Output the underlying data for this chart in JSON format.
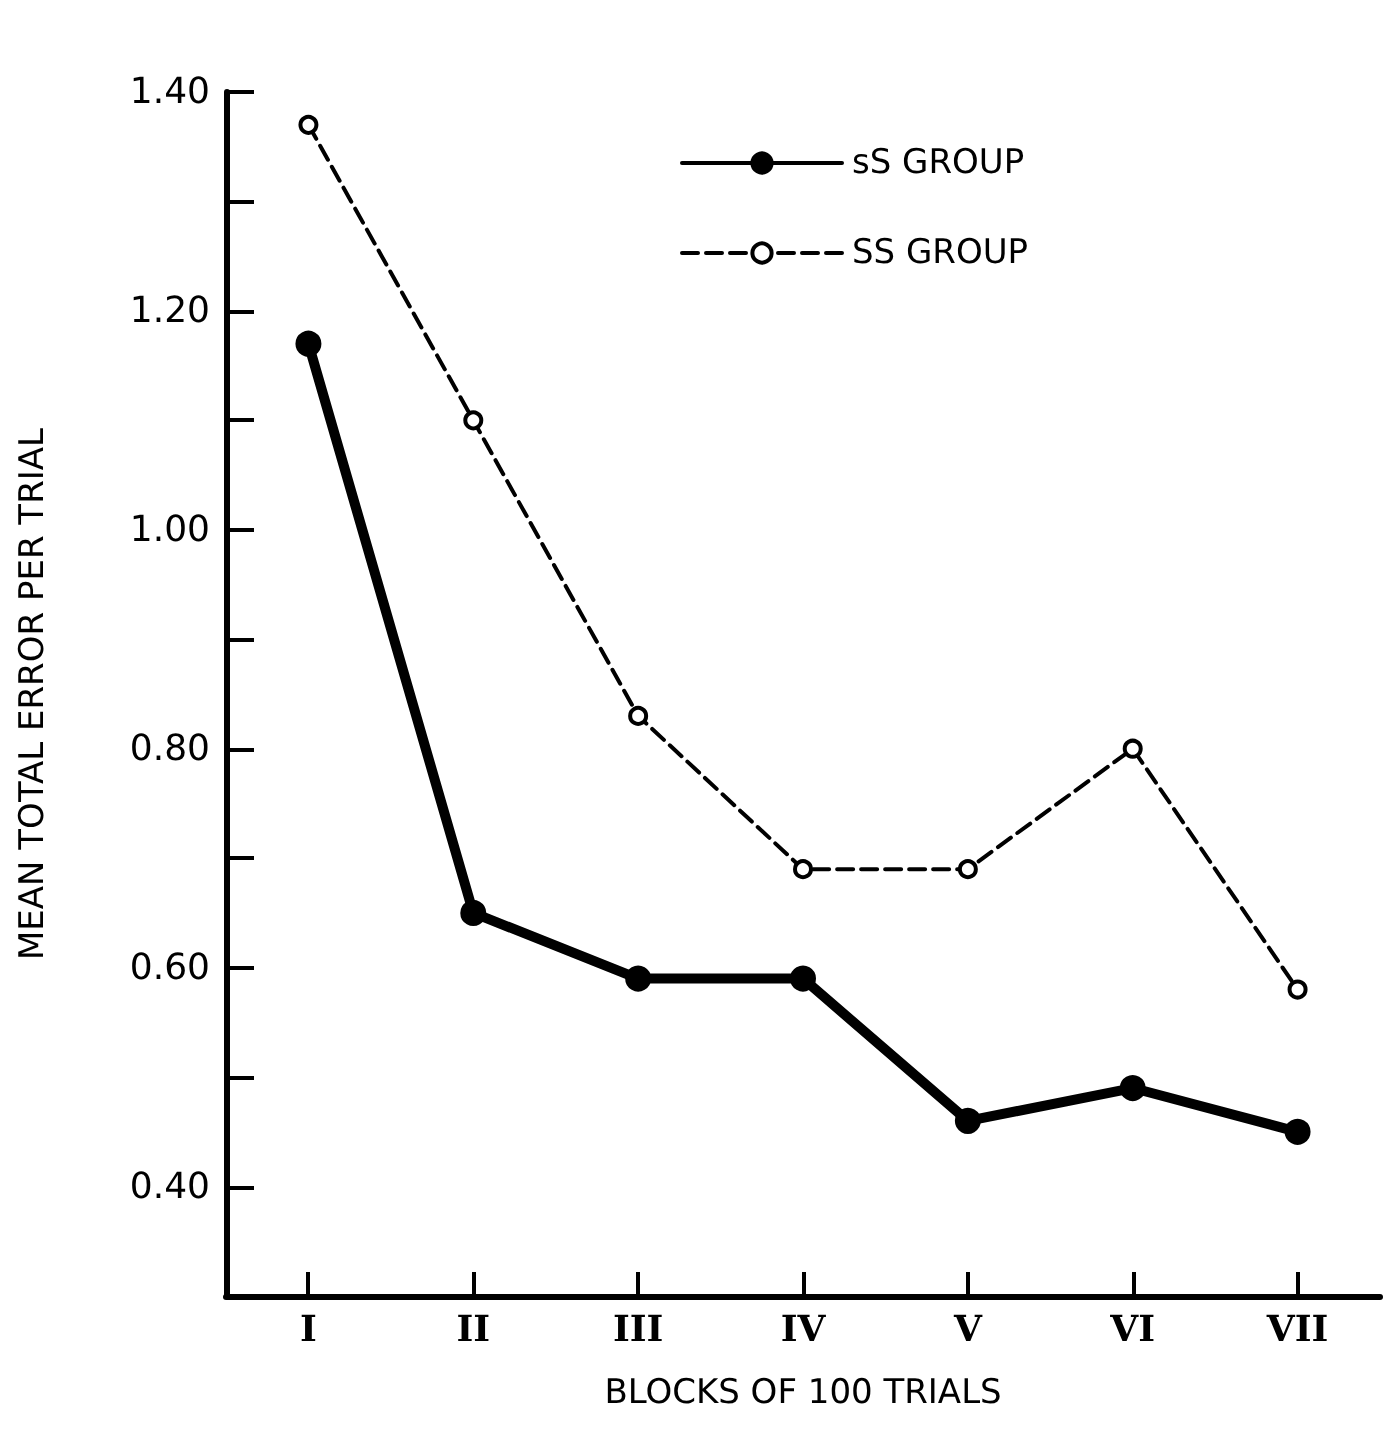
{
  "chart_data": {
    "type": "line",
    "xlabel": "BLOCKS OF 100 TRIALS",
    "ylabel": "MEAN TOTAL ERROR PER TRIAL",
    "categories": [
      "I",
      "II",
      "III",
      "IV",
      "V",
      "VI",
      "VII"
    ],
    "series": [
      {
        "name": "sS GROUP",
        "color": "#000000",
        "line_style": "solid",
        "values": [
          1.17,
          0.65,
          0.59,
          0.59,
          0.46,
          0.49,
          0.45
        ]
      },
      {
        "name": "SS GROUP",
        "color": "#000000",
        "line_style": "dashed",
        "values": [
          1.37,
          1.1,
          0.83,
          0.69,
          0.69,
          0.8,
          0.58
        ]
      }
    ],
    "ylim": [
      0.3,
      1.4
    ],
    "yticks": [
      {
        "value": 0.4,
        "label": "0.40"
      },
      {
        "value": 0.5,
        "label": null
      },
      {
        "value": 0.6,
        "label": "0.60"
      },
      {
        "value": 0.7,
        "label": null
      },
      {
        "value": 0.8,
        "label": "0.80"
      },
      {
        "value": 0.9,
        "label": null
      },
      {
        "value": 1.0,
        "label": "1.00"
      },
      {
        "value": 1.1,
        "label": null
      },
      {
        "value": 1.2,
        "label": "1.20"
      },
      {
        "value": 1.3,
        "label": null
      },
      {
        "value": 1.4,
        "label": "1.40"
      }
    ],
    "marker": "circle",
    "grid": false,
    "legend": "top right"
  }
}
